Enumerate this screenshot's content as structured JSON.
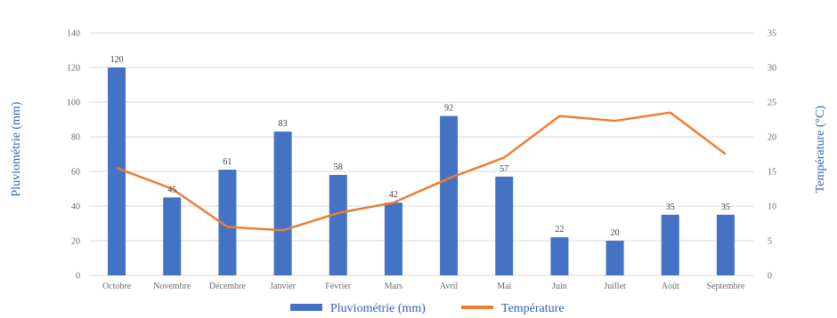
{
  "chart_data": {
    "type": "bar",
    "categories": [
      "Octobre",
      "Novembre",
      "Décembre",
      "Janvier",
      "Février",
      "Mars",
      "Avril",
      "Mai",
      "Juin",
      "Juillet",
      "Août",
      "Septembre"
    ],
    "series": [
      {
        "name": "Pluviométrie (mm)",
        "type": "bar",
        "axis": "left",
        "color": "#4472c4",
        "values": [
          120,
          45,
          61,
          83,
          58,
          42,
          92,
          57,
          22,
          20,
          35,
          35
        ]
      },
      {
        "name": "Température",
        "type": "line",
        "axis": "right",
        "color": "#ed7d31",
        "values": [
          15.5,
          12.5,
          7.0,
          6.5,
          9.0,
          10.5,
          14.0,
          17.0,
          23.0,
          22.3,
          23.5,
          17.5
        ]
      }
    ],
    "ylabel": "Pluviométrie (mm)",
    "y2label": "Température (°C)",
    "ylim": [
      0,
      140
    ],
    "y2lim": [
      0,
      35
    ],
    "yticks": [
      "0",
      "20",
      "40",
      "60",
      "80",
      "100",
      "120",
      "140"
    ],
    "y2ticks": [
      "0",
      "5",
      "10",
      "15",
      "20",
      "25",
      "30",
      "35"
    ],
    "grid": true,
    "legend_position": "bottom"
  }
}
